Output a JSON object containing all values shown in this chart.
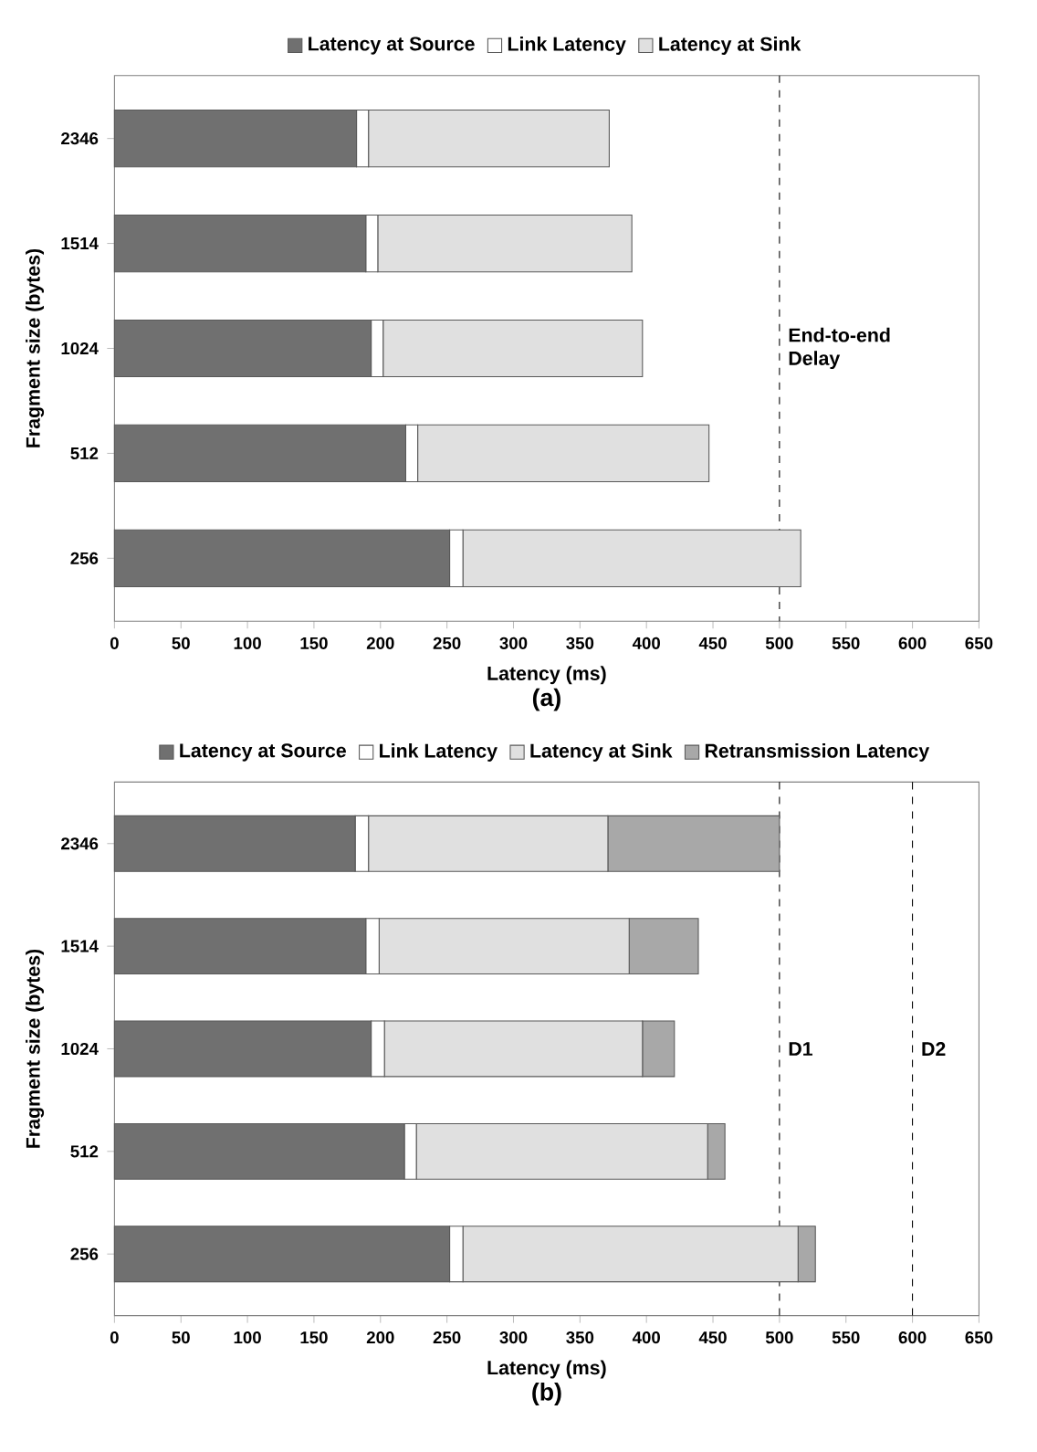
{
  "chart_data": [
    {
      "type": "bar",
      "orientation": "horizontal",
      "stacked": true,
      "title": "(a)",
      "xlabel": "Latency (ms)",
      "ylabel": "Fragment size (bytes)",
      "categories": [
        "2346",
        "1514",
        "1024",
        "512",
        "256"
      ],
      "xlim": [
        0,
        650
      ],
      "xticks": [
        0,
        50,
        100,
        150,
        200,
        250,
        300,
        350,
        400,
        450,
        500,
        550,
        600,
        650
      ],
      "legend": "top",
      "grid": false,
      "series": [
        {
          "name": "Latency at Source",
          "color": "#707070",
          "values": [
            182,
            189,
            193,
            219,
            252
          ]
        },
        {
          "name": "Link Latency",
          "color": "#ffffff",
          "values": [
            9,
            9,
            9,
            9,
            10
          ]
        },
        {
          "name": "Latency at Sink",
          "color": "#e0e0e0",
          "values": [
            181,
            191,
            195,
            219,
            254
          ]
        }
      ],
      "ref_lines": [
        {
          "axis": "x",
          "value": 500,
          "label": "End-to-end Delay",
          "line_style": "dashed"
        }
      ]
    },
    {
      "type": "bar",
      "orientation": "horizontal",
      "stacked": true,
      "title": "(b)",
      "xlabel": "Latency (ms)",
      "ylabel": "Fragment size (bytes)",
      "categories": [
        "2346",
        "1514",
        "1024",
        "512",
        "256"
      ],
      "xlim": [
        0,
        650
      ],
      "xticks": [
        0,
        50,
        100,
        150,
        200,
        250,
        300,
        350,
        400,
        450,
        500,
        550,
        600,
        650
      ],
      "legend": "top",
      "grid": false,
      "series": [
        {
          "name": "Latency at Source",
          "color": "#707070",
          "values": [
            181,
            189,
            193,
            218,
            252
          ]
        },
        {
          "name": "Link Latency",
          "color": "#ffffff",
          "values": [
            10,
            10,
            10,
            9,
            10
          ]
        },
        {
          "name": "Latency at Sink",
          "color": "#e0e0e0",
          "values": [
            180,
            188,
            194,
            219,
            252
          ]
        },
        {
          "name": "Retransmission Latency",
          "color": "#a8a8a8",
          "values": [
            129,
            52,
            24,
            13,
            13
          ]
        }
      ],
      "ref_lines": [
        {
          "axis": "x",
          "value": 500,
          "label": "D1",
          "line_style": "dashed"
        },
        {
          "axis": "x",
          "value": 600,
          "label": "D2",
          "line_style": "dashed"
        }
      ]
    }
  ]
}
